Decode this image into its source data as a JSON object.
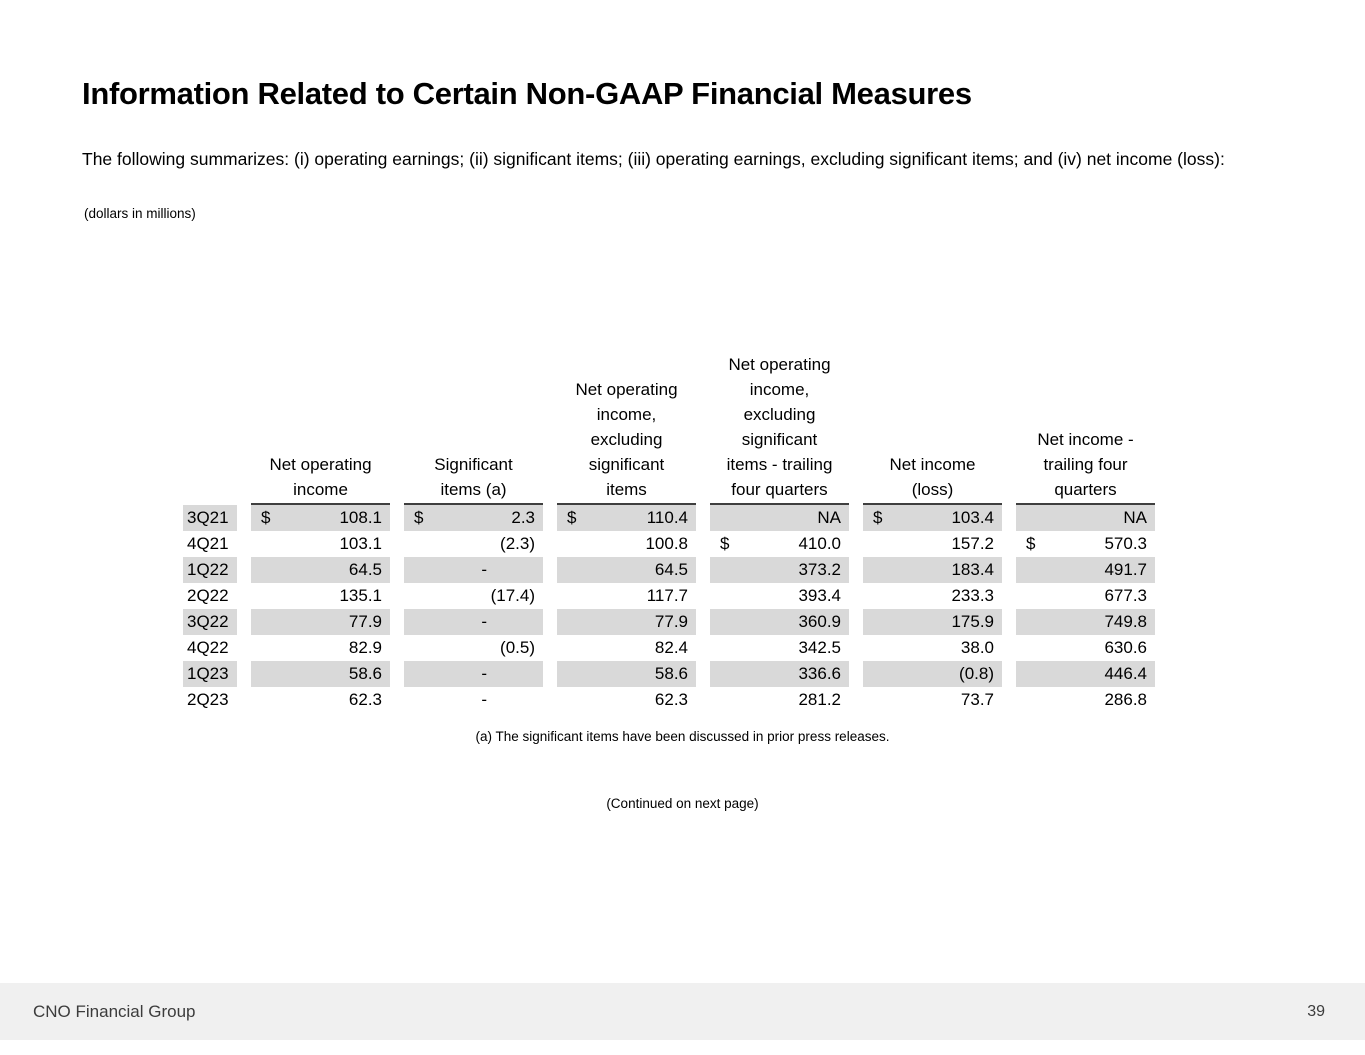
{
  "page": {
    "title": "Information Related to Certain Non-GAAP Financial Measures",
    "intro": "The following summarizes: (i) operating earnings; (ii) significant items; (iii) operating earnings, excluding significant items; and (iv) net income (loss):",
    "units_note": "(dollars in millions)",
    "footnote": "(a) The significant items have been discussed in prior press releases.",
    "continued_note": "(Continued on next page)"
  },
  "colors": {
    "title_navy": "#183a7d",
    "row_stripe_gray": "#d9d9d9",
    "header_rule": "#3f3f3f",
    "footer_bg": "#f0f0f0",
    "footer_text": "#3c3c3c"
  },
  "table": {
    "columns": [
      "",
      "Net operating\nincome",
      "Significant\nitems (a)",
      "Net operating\nincome,\nexcluding\nsignificant\nitems",
      "Net operating\nincome,\nexcluding\nsignificant\nitems - trailing\nfour quarters",
      "Net income\n(loss)",
      "Net income -\ntrailing four\nquarters"
    ],
    "rows": [
      {
        "q": "3Q21",
        "c": [
          [
            "$",
            "108.1"
          ],
          [
            "$",
            "2.3"
          ],
          [
            "$",
            "110.4"
          ],
          [
            "",
            "NA"
          ],
          [
            "$",
            "103.4"
          ],
          [
            "",
            "NA"
          ]
        ]
      },
      {
        "q": "4Q21",
        "c": [
          [
            "",
            "103.1"
          ],
          [
            "",
            "(2.3)"
          ],
          [
            "",
            "100.8"
          ],
          [
            "$",
            "410.0"
          ],
          [
            "",
            "157.2"
          ],
          [
            "$",
            "570.3"
          ]
        ]
      },
      {
        "q": "1Q22",
        "c": [
          [
            "",
            "64.5"
          ],
          [
            "",
            "-"
          ],
          [
            "",
            "64.5"
          ],
          [
            "",
            "373.2"
          ],
          [
            "",
            "183.4"
          ],
          [
            "",
            "491.7"
          ]
        ]
      },
      {
        "q": "2Q22",
        "c": [
          [
            "",
            "135.1"
          ],
          [
            "",
            "(17.4)"
          ],
          [
            "",
            "117.7"
          ],
          [
            "",
            "393.4"
          ],
          [
            "",
            "233.3"
          ],
          [
            "",
            "677.3"
          ]
        ]
      },
      {
        "q": "3Q22",
        "c": [
          [
            "",
            "77.9"
          ],
          [
            "",
            "-"
          ],
          [
            "",
            "77.9"
          ],
          [
            "",
            "360.9"
          ],
          [
            "",
            "175.9"
          ],
          [
            "",
            "749.8"
          ]
        ]
      },
      {
        "q": "4Q22",
        "c": [
          [
            "",
            "82.9"
          ],
          [
            "",
            "(0.5)"
          ],
          [
            "",
            "82.4"
          ],
          [
            "",
            "342.5"
          ],
          [
            "",
            "38.0"
          ],
          [
            "",
            "630.6"
          ]
        ]
      },
      {
        "q": "1Q23",
        "c": [
          [
            "",
            "58.6"
          ],
          [
            "",
            "-"
          ],
          [
            "",
            "58.6"
          ],
          [
            "",
            "336.6"
          ],
          [
            "",
            "(0.8)"
          ],
          [
            "",
            "446.4"
          ]
        ]
      },
      {
        "q": "2Q23",
        "c": [
          [
            "",
            "62.3"
          ],
          [
            "",
            "-"
          ],
          [
            "",
            "62.3"
          ],
          [
            "",
            "281.2"
          ],
          [
            "",
            "73.7"
          ],
          [
            "",
            "286.8"
          ]
        ]
      }
    ]
  },
  "footer": {
    "company": "CNO Financial Group",
    "page_number": "39"
  }
}
